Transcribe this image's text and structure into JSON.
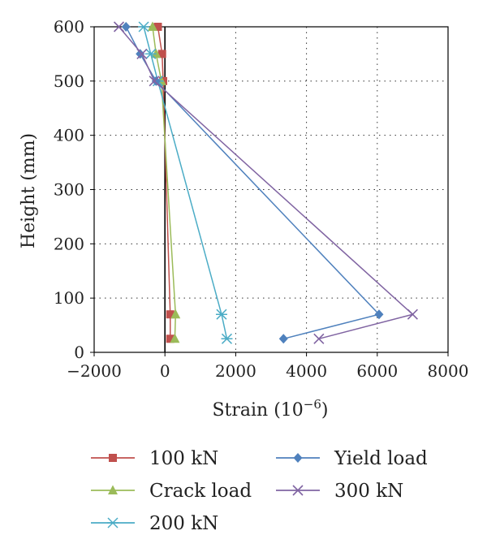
{
  "chart_data": {
    "type": "line",
    "xlabel": "Strain (10",
    "xlabel_superscript": "−6",
    "xlabel_suffix": ")",
    "ylabel": "Height (mm)",
    "xlim": [
      -2000,
      8000
    ],
    "ylim": [
      0,
      600
    ],
    "x_ticks": [
      -2000,
      0,
      2000,
      4000,
      6000,
      8000
    ],
    "x_tick_labels": [
      "−2000",
      "0",
      "2000",
      "4000",
      "6000",
      "8000"
    ],
    "y_ticks": [
      0,
      100,
      200,
      300,
      400,
      500,
      600
    ],
    "y_tick_labels": [
      "0",
      "100",
      "200",
      "300",
      "400",
      "500",
      "600"
    ],
    "grid": "dotted",
    "legend_position": "bottom",
    "series": [
      {
        "name": "100 kN",
        "color": "#c0504d",
        "marker": "square",
        "points": [
          {
            "x": 150,
            "y": 25
          },
          {
            "x": 150,
            "y": 70
          },
          {
            "x": -50,
            "y": 500
          },
          {
            "x": -80,
            "y": 550
          },
          {
            "x": -200,
            "y": 600
          }
        ]
      },
      {
        "name": "Crack load",
        "color": "#9bbb59",
        "marker": "triangle",
        "points": [
          {
            "x": 280,
            "y": 25
          },
          {
            "x": 300,
            "y": 70
          },
          {
            "x": -100,
            "y": 500
          },
          {
            "x": -250,
            "y": 550
          },
          {
            "x": -350,
            "y": 600
          }
        ]
      },
      {
        "name": "200 kN",
        "color": "#4bacc6",
        "marker": "asterisk",
        "points": [
          {
            "x": 1750,
            "y": 25
          },
          {
            "x": 1600,
            "y": 70
          },
          {
            "x": -200,
            "y": 500
          },
          {
            "x": -400,
            "y": 550
          },
          {
            "x": -600,
            "y": 600
          }
        ]
      },
      {
        "name": "Yield load",
        "color": "#4f81bd",
        "marker": "diamond",
        "points": [
          {
            "x": 3350,
            "y": 25
          },
          {
            "x": 6050,
            "y": 70
          },
          {
            "x": -250,
            "y": 500
          },
          {
            "x": -700,
            "y": 550
          },
          {
            "x": -1100,
            "y": 600
          }
        ]
      },
      {
        "name": "300 kN",
        "color": "#8064a2",
        "marker": "x",
        "points": [
          {
            "x": 4350,
            "y": 25
          },
          {
            "x": 7000,
            "y": 70
          },
          {
            "x": -300,
            "y": 500
          },
          {
            "x": -650,
            "y": 550
          },
          {
            "x": -1300,
            "y": 600
          }
        ]
      }
    ],
    "legend": {
      "columns": [
        [
          "100 kN",
          "Crack load",
          "200 kN"
        ],
        [
          "Yield load",
          "300 kN"
        ]
      ]
    }
  }
}
